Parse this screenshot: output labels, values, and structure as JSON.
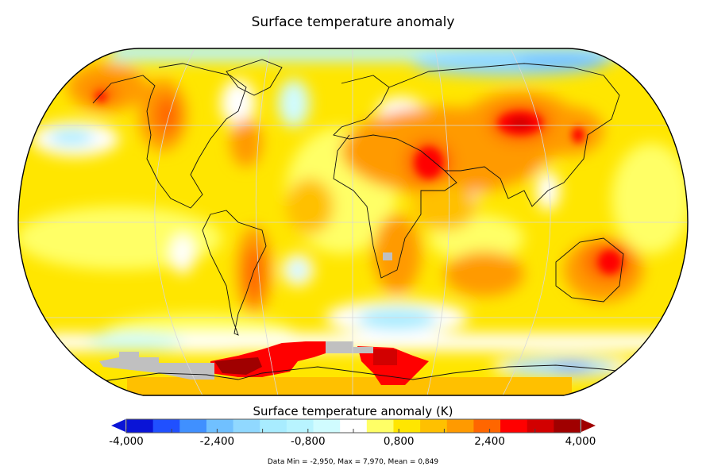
{
  "title": "Surface temperature anomaly",
  "colorbar": {
    "label": "Surface temperature anomaly (K)",
    "min": -4000,
    "max": 4000,
    "tick_labels": [
      "-4,000",
      "-2,400",
      "-0,800",
      "0,800",
      "2,400",
      "4,000"
    ],
    "tick_values": [
      -4000,
      -2400,
      -800,
      800,
      2400,
      4000
    ],
    "extend": "both",
    "colors": [
      "#0a14d6",
      "#2050ff",
      "#4090ff",
      "#70c0ff",
      "#90d8ff",
      "#a8ecff",
      "#b8f4ff",
      "#d0fcff",
      "#ffffff",
      "#ffff66",
      "#ffe600",
      "#ffc000",
      "#ff9a00",
      "#ff6600",
      "#ff0000",
      "#d20000",
      "#a00000"
    ],
    "under_color": "#0a14d6",
    "over_color": "#a00000"
  },
  "stats": "Data Min = -2,950, Max = 7,970, Mean = 0,849",
  "map": {
    "projection": "Robinson-like world",
    "missing_color": "#c0c0c0"
  }
}
